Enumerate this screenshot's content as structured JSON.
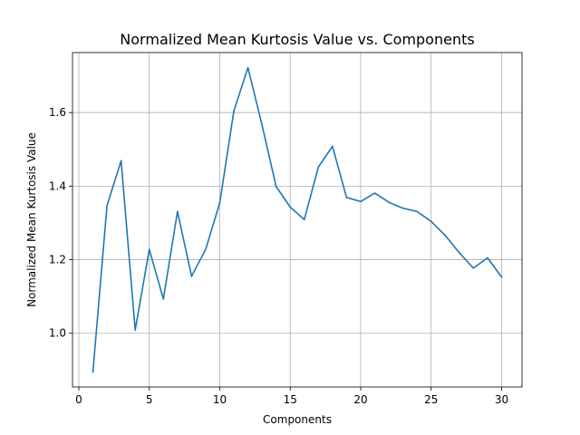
{
  "chart_data": {
    "type": "line",
    "title": "Normalized Mean Kurtosis Value vs. Components",
    "xlabel": "Components",
    "ylabel": "Normalized Mean Kurtosis Value",
    "xlim": [
      -0.45,
      31.45
    ],
    "ylim": [
      0.854,
      1.763
    ],
    "xticks": [
      0,
      5,
      10,
      15,
      20,
      25,
      30
    ],
    "yticks": [
      1.0,
      1.2,
      1.4,
      1.6
    ],
    "ytick_labels": [
      "1.0",
      "1.2",
      "1.4",
      "1.6"
    ],
    "grid": true,
    "series": [
      {
        "color": "#1f77b4",
        "x": [
          1,
          2,
          3,
          4,
          5,
          6,
          7,
          8,
          9,
          10,
          11,
          12,
          13,
          14,
          15,
          16,
          17,
          18,
          19,
          20,
          21,
          22,
          23,
          24,
          25,
          26,
          27,
          28,
          29,
          30
        ],
        "y": [
          0.895,
          1.347,
          1.469,
          1.009,
          1.228,
          1.093,
          1.331,
          1.155,
          1.228,
          1.354,
          1.604,
          1.722,
          1.566,
          1.399,
          1.343,
          1.309,
          1.452,
          1.508,
          1.369,
          1.358,
          1.381,
          1.356,
          1.34,
          1.331,
          1.304,
          1.266,
          1.219,
          1.177,
          1.205,
          1.153
        ]
      }
    ]
  }
}
